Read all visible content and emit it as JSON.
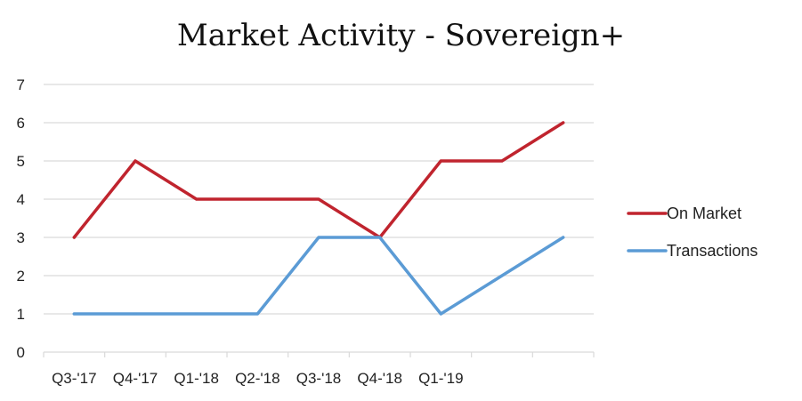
{
  "chart_data": {
    "type": "line",
    "title": "Market Activity - Sovereign+",
    "categories": [
      "Q3-'17",
      "Q4-'17",
      "Q1-'18",
      "Q2-'18",
      "Q3-'18",
      "Q4-'18",
      "Q1-'19",
      "",
      ""
    ],
    "series": [
      {
        "name": "On Market",
        "color": "#c0242e",
        "values": [
          3,
          5,
          4,
          4,
          4,
          3,
          5,
          5,
          6
        ]
      },
      {
        "name": "Transactions",
        "color": "#5b9bd5",
        "values": [
          1,
          1,
          1,
          1,
          3,
          3,
          1,
          2,
          3
        ]
      }
    ],
    "yticks": [
      0,
      1,
      2,
      3,
      4,
      5,
      6,
      7
    ],
    "ylim": [
      0,
      7
    ],
    "grid": true,
    "legend_position": "right"
  }
}
